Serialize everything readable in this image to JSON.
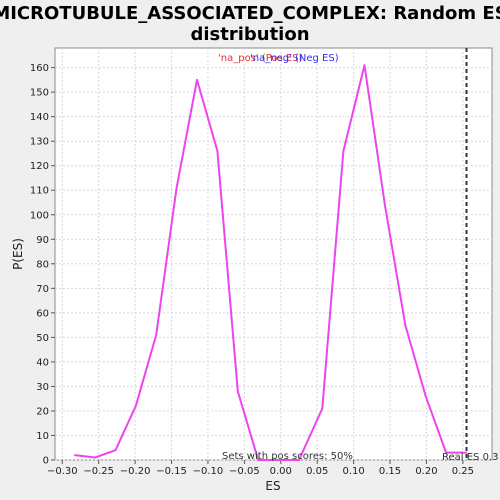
{
  "chart_data": {
    "type": "line",
    "title_line1": "MICROTUBULE_ASSOCIATED_COMPLEX: Random ES",
    "title_line2": "distribution",
    "xlabel": "ES",
    "ylabel": "P(ES)",
    "xlim": [
      -0.31,
      0.29
    ],
    "ylim": [
      0,
      168
    ],
    "xticks": [
      -0.3,
      -0.25,
      -0.2,
      -0.15,
      -0.1,
      -0.05,
      0.0,
      0.05,
      0.1,
      0.15,
      0.2,
      0.25
    ],
    "xtick_labels": [
      "−0.30",
      "−0.25",
      "−0.20",
      "−0.15",
      "−0.10",
      "−0.05",
      "0.00",
      "0.05",
      "0.10",
      "0.15",
      "0.20",
      "0.25"
    ],
    "yticks": [
      0,
      10,
      20,
      30,
      40,
      50,
      60,
      70,
      80,
      90,
      100,
      110,
      120,
      130,
      140,
      150,
      160
    ],
    "grid": true,
    "legend": {
      "placement": "top-center",
      "pos_label": "'na_pos' (Pos ES)",
      "neg_label": "'na_neg' (Neg ES)",
      "pos_color": "#e83030",
      "neg_color": "#3030e8"
    },
    "series": [
      {
        "color": "#ee44ee",
        "x": [
          -0.283,
          -0.255,
          -0.227,
          -0.199,
          -0.171,
          -0.143,
          -0.115,
          -0.087,
          -0.059,
          -0.031,
          -0.003,
          0.025,
          0.057,
          0.086,
          0.115,
          0.143,
          0.171,
          0.199,
          0.227,
          0.255
        ],
        "y": [
          2,
          1,
          4,
          22,
          51,
          111,
          155,
          126,
          28,
          0,
          0,
          0,
          21,
          126,
          161,
          104,
          55,
          26,
          3,
          3
        ]
      }
    ],
    "real_es": {
      "x": 0.255,
      "label": "Real ES 0.3"
    },
    "footnote": "Sets with pos scores: 50%"
  },
  "colors": {
    "background": "#efefef",
    "plot_bg": "#ffffff",
    "line": "#ee44ee",
    "grid": "#d8d8d8",
    "real_es_line": "#333333"
  }
}
